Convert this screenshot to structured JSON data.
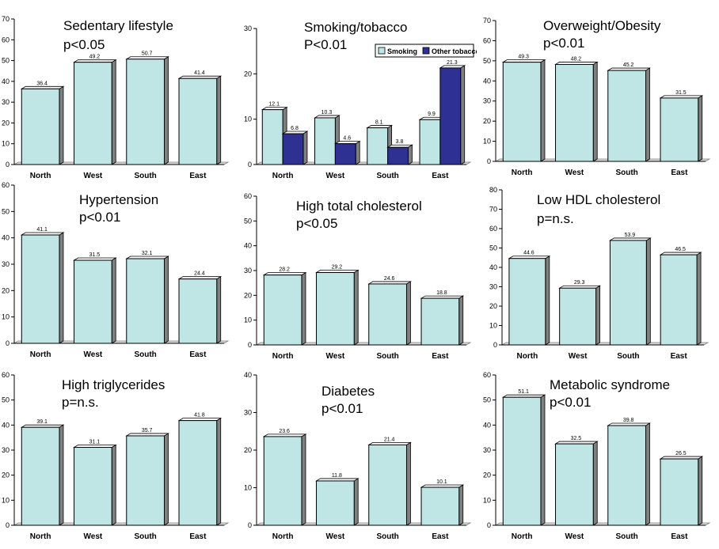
{
  "colors": {
    "bar": "#BFE5E5",
    "bar_dark": "#2E3192",
    "outline": "#000000",
    "top_face": "#ffffff",
    "side_face": "#808080"
  },
  "chart_data": [
    {
      "type": "bar",
      "title": "Sedentary lifestyle",
      "subtitle": "p<0.05",
      "categories": [
        "North",
        "West",
        "South",
        "East"
      ],
      "series": [
        {
          "name": "Sedentary lifestyle",
          "values": [
            36.4,
            49.2,
            50.7,
            41.4
          ]
        }
      ],
      "value_labels": [
        [
          "36.4",
          "49.2",
          "50.7",
          "41.4"
        ]
      ],
      "ylim": [
        0,
        70
      ],
      "yticks": [
        "0",
        "10",
        "20",
        "30",
        "40",
        "50",
        "60",
        "70"
      ],
      "xlabel": "",
      "ylabel": ""
    },
    {
      "type": "bar",
      "title": "Smoking/tobacco",
      "subtitle": "P<0.01",
      "categories": [
        "North",
        "West",
        "South",
        "East"
      ],
      "series": [
        {
          "name": "Smoking",
          "values": [
            12.1,
            10.3,
            8.1,
            9.9
          ]
        },
        {
          "name": "Other tobacco",
          "values": [
            6.8,
            4.6,
            3.8,
            21.3
          ]
        }
      ],
      "value_labels": [
        [
          "12.1",
          "10.3",
          "8.1",
          "9.9"
        ],
        [
          "6.8",
          "4.6",
          "3.8",
          "21.3"
        ]
      ],
      "legend": [
        "Smoking",
        "Other tobacco"
      ],
      "legend_position": "top-right",
      "ylim": [
        0,
        30
      ],
      "yticks": [
        "0",
        "10",
        "20",
        "30"
      ],
      "xlabel": "",
      "ylabel": ""
    },
    {
      "type": "bar",
      "title": "Overweight/Obesity",
      "subtitle": "p<0.01",
      "categories": [
        "North",
        "West",
        "South",
        "East"
      ],
      "series": [
        {
          "name": "Overweight/Obesity",
          "values": [
            49.3,
            48.2,
            45.2,
            31.5
          ]
        }
      ],
      "value_labels": [
        [
          "49.3",
          "48.2",
          "45.2",
          "31.5"
        ]
      ],
      "ylim": [
        0,
        70
      ],
      "yticks": [
        "0",
        "10",
        "20",
        "30",
        "40",
        "50",
        "60",
        "70"
      ],
      "xlabel": "",
      "ylabel": ""
    },
    {
      "type": "bar",
      "title": "Hypertension",
      "subtitle": "p<0.01",
      "categories": [
        "North",
        "West",
        "South",
        "East"
      ],
      "series": [
        {
          "name": "Hypertension",
          "values": [
            41.1,
            31.5,
            32.1,
            24.4
          ]
        }
      ],
      "value_labels": [
        [
          "41.1",
          "31.5",
          "32.1",
          "24.4"
        ]
      ],
      "ylim": [
        0,
        60
      ],
      "yticks": [
        "0",
        "10",
        "20",
        "30",
        "40",
        "50",
        "60"
      ],
      "xlabel": "",
      "ylabel": ""
    },
    {
      "type": "bar",
      "title": "High total cholesterol",
      "subtitle": "p<0.05",
      "categories": [
        "North",
        "West",
        "South",
        "East"
      ],
      "series": [
        {
          "name": "High total cholesterol",
          "values": [
            28.2,
            29.2,
            24.6,
            18.8
          ]
        }
      ],
      "value_labels": [
        [
          "28.2",
          "29.2",
          "24.6",
          "18.8"
        ]
      ],
      "ylim": [
        0,
        60
      ],
      "yticks": [
        "0",
        "10",
        "20",
        "30",
        "40",
        "50",
        "60"
      ],
      "xlabel": "",
      "ylabel": ""
    },
    {
      "type": "bar",
      "title": "Low HDL cholesterol",
      "subtitle": "p=n.s.",
      "categories": [
        "North",
        "West",
        "South",
        "East"
      ],
      "series": [
        {
          "name": "Low HDL cholesterol",
          "values": [
            44.6,
            29.3,
            53.9,
            46.5
          ]
        }
      ],
      "value_labels": [
        [
          "44.6",
          "29.3",
          "53.9",
          "46.5"
        ]
      ],
      "ylim": [
        0,
        80
      ],
      "yticks": [
        "0",
        "10",
        "20",
        "30",
        "40",
        "50",
        "60",
        "70",
        "80"
      ],
      "xlabel": "",
      "ylabel": ""
    },
    {
      "type": "bar",
      "title": "High triglycerides",
      "subtitle": "p=n.s.",
      "categories": [
        "North",
        "West",
        "South",
        "East"
      ],
      "series": [
        {
          "name": "High triglycerides",
          "values": [
            39.1,
            31.1,
            35.7,
            41.8
          ]
        }
      ],
      "value_labels": [
        [
          "39.1",
          "31.1",
          "35.7",
          "41.8"
        ]
      ],
      "ylim": [
        0,
        60
      ],
      "yticks": [
        "0",
        "10",
        "20",
        "30",
        "40",
        "50",
        "60"
      ],
      "xlabel": "",
      "ylabel": ""
    },
    {
      "type": "bar",
      "title": "Diabetes",
      "subtitle": "p<0.01",
      "categories": [
        "North",
        "West",
        "South",
        "East"
      ],
      "series": [
        {
          "name": "Diabetes",
          "values": [
            23.6,
            11.8,
            21.4,
            10.1
          ]
        }
      ],
      "value_labels": [
        [
          "23.6",
          "11.8",
          "21.4",
          "10.1"
        ]
      ],
      "ylim": [
        0,
        40
      ],
      "yticks": [
        "0",
        "10",
        "20",
        "30",
        "40"
      ],
      "xlabel": "",
      "ylabel": ""
    },
    {
      "type": "bar",
      "title": "Metabolic syndrome",
      "subtitle": "p<0.01",
      "categories": [
        "North",
        "West",
        "South",
        "East"
      ],
      "series": [
        {
          "name": "Metabolic syndrome",
          "values": [
            51.1,
            32.5,
            39.8,
            26.5
          ]
        }
      ],
      "value_labels": [
        [
          "51.1",
          "32.5",
          "39.8",
          "26.5"
        ]
      ],
      "ylim": [
        0,
        60
      ],
      "yticks": [
        "0",
        "10",
        "20",
        "30",
        "40",
        "50",
        "60"
      ],
      "xlabel": "",
      "ylabel": ""
    }
  ]
}
